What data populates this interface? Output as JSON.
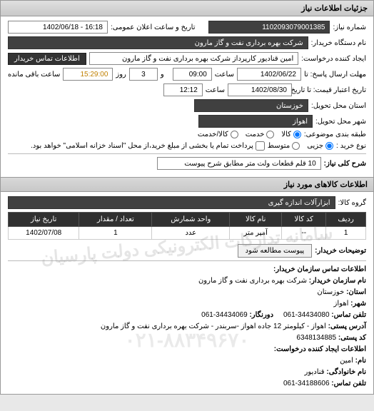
{
  "window": {
    "title": "جزئیات اطلاعات نیاز"
  },
  "header": {
    "number_label": "شماره نیاز:",
    "number_value": "1102093079001385",
    "datetime_label": "تاریخ و ساعت اعلان عمومی:",
    "datetime_value": "16:18 - 1402/06/18",
    "buyer_org_label": "نام دستگاه خریدار:",
    "buyer_org_value": "شرکت بهره برداری نفت و گاز مارون",
    "creator_label": "ایجاد کننده درخواست:",
    "creator_value": "امین قنادیور کارپرداز شرکت بهره برداری نفت و گاز مارون",
    "contact_link": "اطلاعات تماس خریدار",
    "response_until_label": "مهلت ارسال پاسخ: تا",
    "response_date": "1402/06/22",
    "time_label1": "ساعت",
    "response_time": "09:00",
    "and_label": "و",
    "days_value": "3",
    "days_label": "روز",
    "remain_time": "15:29:00",
    "remain_label": "ساعت باقی مانده",
    "validity_label": "تاریخ اعتبار قیمت: تا تاریخ:",
    "validity_date": "1402/08/30",
    "time_label2": "ساعت",
    "validity_time": "12:12",
    "province_label": "استان محل تحویل:",
    "province_value": "خوزستان",
    "city_label": "شهر محل تحویل:",
    "city_value": "اهواز",
    "category_label": "طبقه بندی موضوعی:",
    "cat_kala": "کالا",
    "cat_khedmat": "خدمت",
    "cat_both": "کالا/خدمت",
    "buy_kind_label": "نوع خرید :",
    "kind_small": "جزیی",
    "kind_medium": "متوسط",
    "buy_note": "پرداخت تمام یا بخشی از مبلغ خرید،از محل \"اسناد خزانه اسلامی\" خواهد بود."
  },
  "main_title": {
    "label": "شرح کلی نیاز:",
    "value": "10 قلم قطعات ولت متر مطابق شرح پیوست"
  },
  "goods_section": {
    "heading": "اطلاعات کالاهای مورد نیاز",
    "group_label": "گروه کالا:",
    "group_value": "ابزارآلات اندازه گیری"
  },
  "table": {
    "columns": [
      "ردیف",
      "کد کالا",
      "نام کالا",
      "واحد شمارش",
      "تعداد / مقدار",
      "تاریخ نیاز"
    ],
    "rows": [
      [
        "1",
        "--",
        "آمپر متر",
        "عدد",
        "1",
        "1402/07/08"
      ]
    ]
  },
  "notes": {
    "label": "توضیحات خریدار:",
    "attachment_btn": "پیوست مطالعه شود"
  },
  "contact": {
    "heading": "اطلاعات تماس سازمان خریدار:",
    "org_label": "نام سازمان خریدار:",
    "org_value": "شرکت بهره برداری نفت و گاز مارون",
    "province_label": "استان:",
    "province_value": "خوزستان",
    "city_label": "شهر:",
    "city_value": "اهواز",
    "phone_label": "تلفن تماس:",
    "phone_value": "34434080-061",
    "fax_label": "دورنگار:",
    "fax_value": "34434069-061",
    "address_label": "آدرس پستی:",
    "address_value": "اهواز - کیلومتر 12 جاده اهواز -سربندر - شرکت بهره برداری نفت و گاز مارون",
    "postal_label": "کد پستی:",
    "postal_value": "6348134885",
    "creator_heading": "اطلاعات ایجاد کننده درخواست:",
    "name_label": "نام:",
    "name_value": "امین",
    "lname_label": "نام خانوادگی:",
    "lname_value": "قنادیور",
    "cphone_label": "تلفن تماس:",
    "cphone_value": "34188606-061"
  },
  "watermark1": "سامانه تدارکات الکترونیکی دولت پارسیان",
  "watermark2": "۰۲۱-۸۸۳۴۹۶۷۰"
}
